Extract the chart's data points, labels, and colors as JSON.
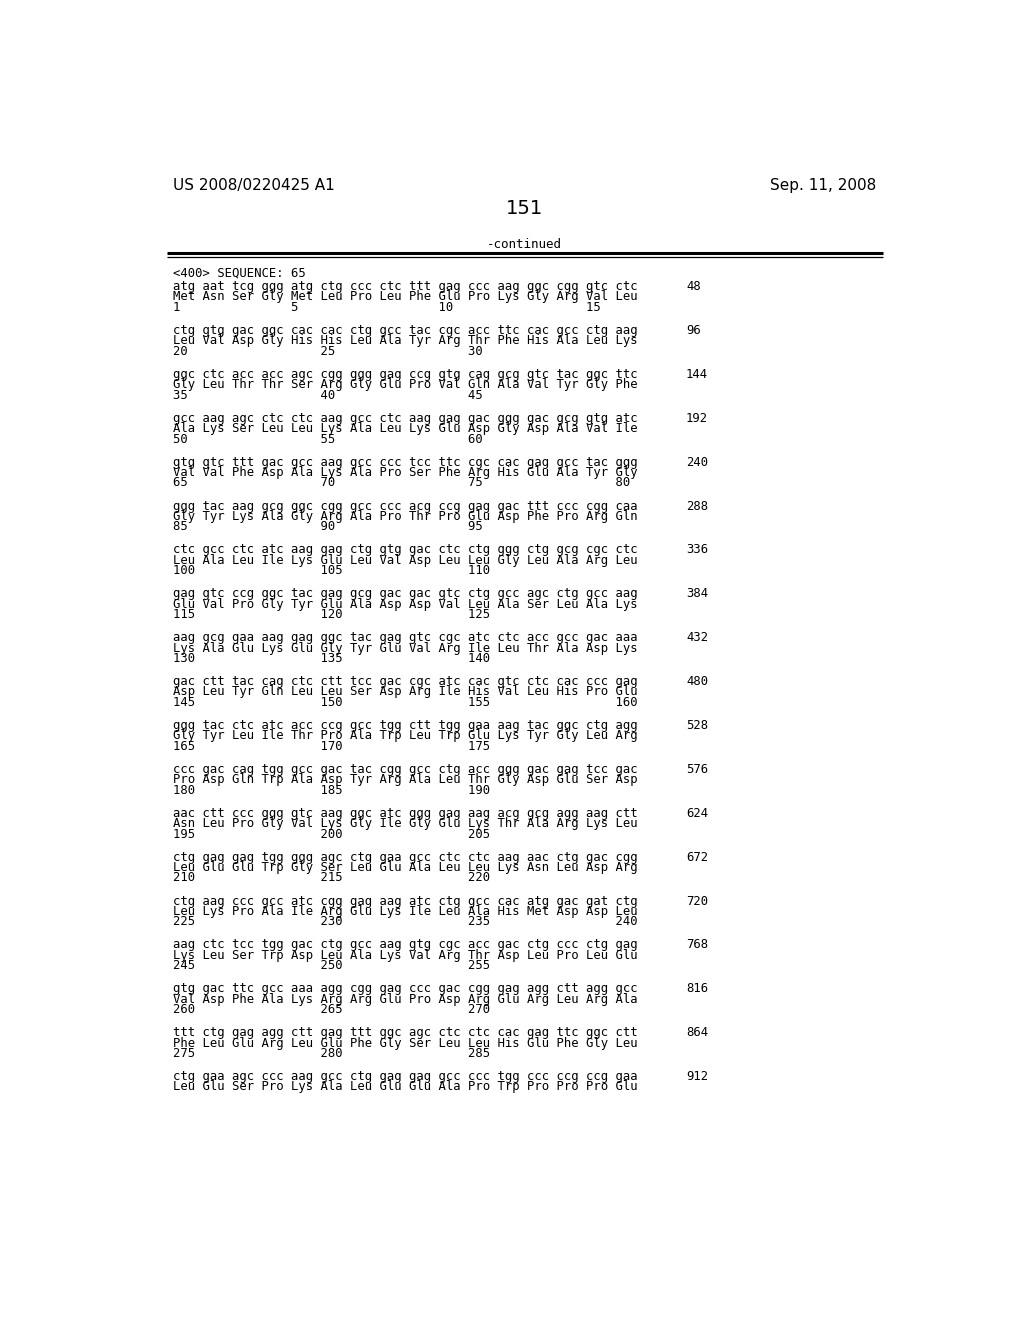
{
  "header_left": "US 2008/0220425 A1",
  "header_right": "Sep. 11, 2008",
  "page_number": "151",
  "continued_text": "-continued",
  "sequence_header": "<400> SEQUENCE: 65",
  "background_color": "#ffffff",
  "text_color": "#000000",
  "sequence_blocks": [
    {
      "dna": "atg aat tcg ggg atg ctg ccc ctc ttt gag ccc aag ggc cgg gtc ctc",
      "protein": "Met Asn Ser Gly Met Leu Pro Leu Phe Glu Pro Lys Gly Arg Val Leu",
      "numbers": "1               5                   10                  15",
      "bp": "48"
    },
    {
      "dna": "ctg gtg gac ggc cac cac ctg gcc tac cgc acc ttc cac gcc ctg aag",
      "protein": "Leu Val Asp Gly His His Leu Ala Tyr Arg Thr Phe His Ala Leu Lys",
      "numbers": "20                  25                  30",
      "bp": "96"
    },
    {
      "dna": "ggc ctc acc acc agc cgg ggg gag ccg gtg cag gcg gtc tac ggc ttc",
      "protein": "Gly Leu Thr Thr Ser Arg Gly Glu Pro Val Gln Ala Val Tyr Gly Phe",
      "numbers": "35                  40                  45",
      "bp": "144"
    },
    {
      "dna": "gcc aag agc ctc ctc aag gcc ctc aag gag gac ggg gac gcg gtg atc",
      "protein": "Ala Lys Ser Leu Leu Lys Ala Leu Lys Glu Asp Gly Asp Ala Val Ile",
      "numbers": "50                  55                  60",
      "bp": "192"
    },
    {
      "dna": "gtg gtc ttt gac gcc aag gcc ccc tcc ttc cgc cac gag gcc tac ggg",
      "protein": "Val Val Phe Asp Ala Lys Ala Pro Ser Phe Arg His Glu Ala Tyr Gly",
      "numbers": "65                  70                  75                  80",
      "bp": "240"
    },
    {
      "dna": "ggg tac aag gcg ggc cgg gcc ccc acg ccg gag gac ttt ccc cgg caa",
      "protein": "Gly Tyr Lys Ala Gly Arg Ala Pro Thr Pro Glu Asp Phe Pro Arg Gln",
      "numbers": "85                  90                  95",
      "bp": "288"
    },
    {
      "dna": "ctc gcc ctc atc aag gag ctg gtg gac ctc ctg ggg ctg gcg cgc ctc",
      "protein": "Leu Ala Leu Ile Lys Glu Leu Val Asp Leu Leu Gly Leu Ala Arg Leu",
      "numbers": "100                 105                 110",
      "bp": "336"
    },
    {
      "dna": "gag gtc ccg ggc tac gag gcg gac gac gtc ctg gcc agc ctg gcc aag",
      "protein": "Glu Val Pro Gly Tyr Glu Ala Asp Asp Val Leu Ala Ser Leu Ala Lys",
      "numbers": "115                 120                 125",
      "bp": "384"
    },
    {
      "dna": "aag gcg gaa aag gag ggc tac gag gtc cgc atc ctc acc gcc gac aaa",
      "protein": "Lys Ala Glu Lys Glu Gly Tyr Glu Val Arg Ile Leu Thr Ala Asp Lys",
      "numbers": "130                 135                 140",
      "bp": "432"
    },
    {
      "dna": "gac ctt tac cag ctc ctt tcc gac cgc atc cac gtc ctc cac ccc gag",
      "protein": "Asp Leu Tyr Gln Leu Leu Ser Asp Arg Ile His Val Leu His Pro Glu",
      "numbers": "145                 150                 155                 160",
      "bp": "480"
    },
    {
      "dna": "ggg tac ctc atc acc ccg gcc tgg ctt tgg gaa aag tac ggc ctg agg",
      "protein": "Gly Tyr Leu Ile Thr Pro Ala Trp Leu Trp Glu Lys Tyr Gly Leu Arg",
      "numbers": "165                 170                 175",
      "bp": "528"
    },
    {
      "dna": "ccc gac cag tgg gcc gac tac cgg gcc ctg acc ggg gac gag tcc gac",
      "protein": "Pro Asp Gln Trp Ala Asp Tyr Arg Ala Leu Thr Gly Asp Glu Ser Asp",
      "numbers": "180                 185                 190",
      "bp": "576"
    },
    {
      "dna": "aac ctt ccc ggg gtc aag ggc atc ggg gag aag acg gcg agg aag ctt",
      "protein": "Asn Leu Pro Gly Val Lys Gly Ile Gly Glu Lys Thr Ala Arg Lys Leu",
      "numbers": "195                 200                 205",
      "bp": "624"
    },
    {
      "dna": "ctg gag gag tgg ggg agc ctg gaa gcc ctc ctc aag aac ctg gac cgg",
      "protein": "Leu Glu Glu Trp Gly Ser Leu Glu Ala Leu Leu Lys Asn Leu Asp Arg",
      "numbers": "210                 215                 220",
      "bp": "672"
    },
    {
      "dna": "ctg aag ccc gcc atc cgg gag aag atc ctg gcc cac atg gac gat ctg",
      "protein": "Leu Lys Pro Ala Ile Arg Glu Lys Ile Leu Ala His Met Asp Asp Leu",
      "numbers": "225                 230                 235                 240",
      "bp": "720"
    },
    {
      "dna": "aag ctc tcc tgg gac ctg gcc aag gtg cgc acc gac ctg ccc ctg gag",
      "protein": "Lys Leu Ser Trp Asp Leu Ala Lys Val Arg Thr Asp Leu Pro Leu Glu",
      "numbers": "245                 250                 255",
      "bp": "768"
    },
    {
      "dna": "gtg gac ttc gcc aaa agg cgg gag ccc gac cgg gag agg ctt agg gcc",
      "protein": "Val Asp Phe Ala Lys Arg Arg Glu Pro Asp Arg Glu Arg Leu Arg Ala",
      "numbers": "260                 265                 270",
      "bp": "816"
    },
    {
      "dna": "ttt ctg gag agg ctt gag ttt ggc agc ctc ctc cac gag ttc ggc ctt",
      "protein": "Phe Leu Glu Arg Leu Glu Phe Gly Ser Leu Leu His Glu Phe Gly Leu",
      "numbers": "275                 280                 285",
      "bp": "864"
    },
    {
      "dna": "ctg gaa agc ccc aag gcc ctg gag gag gcc ccc tgg ccc ccg ccg gaa",
      "protein": "Leu Glu Ser Pro Lys Ala Leu Glu Glu Ala Pro Trp Pro Pro Pro Glu",
      "numbers": "",
      "bp": "912"
    }
  ]
}
